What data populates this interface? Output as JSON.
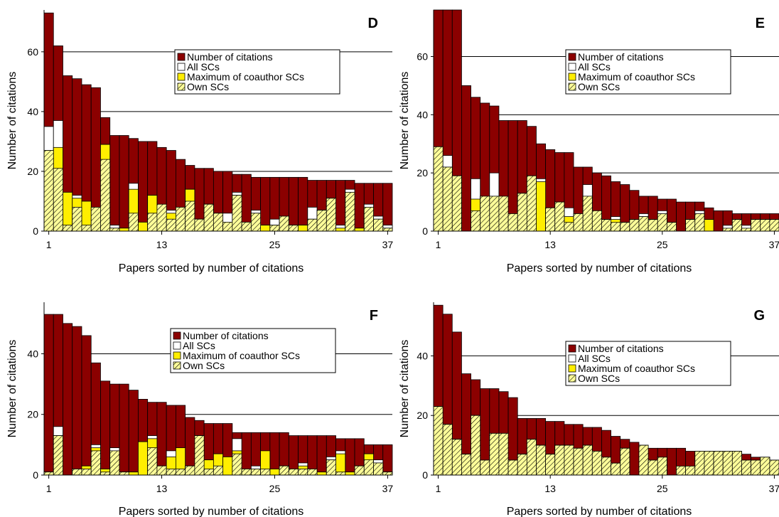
{
  "chart_data": [
    {
      "panel": "D",
      "type": "bar",
      "stacked": "overlay",
      "xlabel": "Papers sorted by number of citations",
      "ylabel": "Number of citations",
      "xticks": [
        1,
        13,
        25,
        37
      ],
      "yticks": [
        0,
        20,
        40,
        60
      ],
      "ylim": [
        0,
        74
      ],
      "grid": "horizontal",
      "legend_position": "upper-right",
      "legend": [
        "Number of citations",
        "All SCs",
        "Maximum of coauthor SCs",
        "Own SCs"
      ],
      "colors": {
        "citations": "#8b0000",
        "all_scs": "#ffffff",
        "max_coauthor": "#ffee00",
        "own": "#ffff99"
      },
      "series": [
        {
          "name": "Number of citations",
          "values": [
            73,
            62,
            52,
            51,
            49,
            48,
            38,
            32,
            32,
            31,
            30,
            30,
            28,
            27,
            24,
            22,
            21,
            21,
            20,
            20,
            19,
            19,
            18,
            18,
            18,
            18,
            18,
            18,
            17,
            17,
            17,
            17,
            17,
            16,
            16,
            16,
            16
          ]
        },
        {
          "name": "All SCs",
          "values": [
            35,
            37,
            13,
            12,
            10,
            2,
            29,
            2,
            1,
            16,
            3,
            12,
            8,
            7,
            8,
            14,
            4,
            9,
            6,
            6,
            13,
            3,
            7,
            2,
            4,
            5,
            2,
            2,
            8,
            7,
            11,
            2,
            14,
            1,
            9,
            5,
            2
          ]
        },
        {
          "name": "Maximum of coauthor SCs",
          "values": [
            27,
            28,
            13,
            11,
            10,
            2,
            29,
            1,
            1,
            14,
            3,
            12,
            8,
            6,
            8,
            14,
            4,
            9,
            6,
            3,
            12,
            3,
            6,
            2,
            2,
            5,
            2,
            2,
            4,
            7,
            11,
            1,
            13,
            1,
            8,
            4,
            1
          ]
        },
        {
          "name": "Own SCs",
          "values": [
            27,
            21,
            2,
            8,
            2,
            8,
            24,
            1,
            0,
            6,
            0,
            6,
            9,
            4,
            8,
            10,
            4,
            9,
            6,
            3,
            12,
            3,
            6,
            0,
            2,
            5,
            2,
            0,
            4,
            7,
            11,
            0,
            13,
            0,
            8,
            4,
            1
          ]
        }
      ]
    },
    {
      "panel": "E",
      "type": "bar",
      "stacked": "overlay",
      "xlabel": "Papers sorted by number of citations",
      "ylabel": "Number of citations",
      "xticks": [
        1,
        13,
        25,
        37
      ],
      "yticks": [
        0,
        20,
        40,
        60
      ],
      "ylim": [
        0,
        76
      ],
      "grid": "horizontal",
      "legend_position": "upper-right",
      "legend": [
        "Number of citations",
        "All SCs",
        "Maximum of coauthor SCs",
        "Own SCs"
      ],
      "colors": {
        "citations": "#8b0000",
        "all_scs": "#ffffff",
        "max_coauthor": "#ffee00",
        "own": "#ffff99"
      },
      "series": [
        {
          "name": "Number of citations",
          "values": [
            80,
            76,
            76,
            50,
            46,
            44,
            43,
            38,
            38,
            38,
            36,
            30,
            28,
            27,
            27,
            22,
            22,
            20,
            19,
            17,
            16,
            14,
            12,
            12,
            11,
            11,
            10,
            10,
            10,
            8,
            7,
            7,
            6,
            6,
            6,
            6,
            6
          ]
        },
        {
          "name": "All SCs",
          "values": [
            29,
            26,
            19,
            0,
            18,
            12,
            20,
            12,
            6,
            13,
            19,
            18,
            8,
            10,
            8,
            6,
            16,
            7,
            4,
            5,
            3,
            4,
            6,
            4,
            7,
            3,
            0,
            4,
            7,
            4,
            0,
            2,
            4,
            2,
            4,
            4,
            4
          ]
        },
        {
          "name": "Maximum of coauthor SCs",
          "values": [
            29,
            22,
            19,
            0,
            11,
            12,
            12,
            12,
            6,
            13,
            19,
            17,
            8,
            8,
            5,
            6,
            12,
            7,
            4,
            4,
            3,
            4,
            5,
            4,
            6,
            3,
            0,
            4,
            6,
            4,
            0,
            1,
            4,
            1,
            4,
            4,
            4
          ]
        },
        {
          "name": "Own SCs",
          "values": [
            29,
            22,
            19,
            0,
            7,
            12,
            12,
            12,
            6,
            13,
            19,
            0,
            8,
            10,
            3,
            6,
            12,
            7,
            4,
            3,
            3,
            4,
            5,
            4,
            6,
            3,
            0,
            4,
            6,
            0,
            0,
            1,
            4,
            1,
            4,
            4,
            4
          ]
        }
      ]
    },
    {
      "panel": "F",
      "type": "bar",
      "stacked": "overlay",
      "xlabel": "Papers sorted by number of citations",
      "ylabel": "Number of citations",
      "xticks": [
        1,
        13,
        25,
        37
      ],
      "yticks": [
        0,
        20,
        40
      ],
      "ylim": [
        0,
        57
      ],
      "grid": "horizontal",
      "legend_position": "upper-right",
      "legend": [
        "Number of citations",
        "All SCs",
        "Maximum of coauthor SCs",
        "Own SCs"
      ],
      "colors": {
        "citations": "#8b0000",
        "all_scs": "#ffffff",
        "max_coauthor": "#ffee00",
        "own": "#ffff99"
      },
      "series": [
        {
          "name": "Number of citations",
          "values": [
            53,
            53,
            50,
            49,
            46,
            37,
            31,
            30,
            30,
            28,
            25,
            24,
            24,
            23,
            23,
            19,
            18,
            17,
            17,
            17,
            14,
            14,
            14,
            14,
            14,
            14,
            13,
            13,
            13,
            13,
            13,
            12,
            12,
            12,
            10,
            10,
            10
          ]
        },
        {
          "name": "All SCs",
          "values": [
            1,
            16,
            0,
            2,
            3,
            10,
            2,
            9,
            1,
            1,
            11,
            13,
            3,
            8,
            8,
            3,
            13,
            5,
            7,
            6,
            12,
            2,
            3,
            8,
            2,
            3,
            2,
            4,
            2,
            1,
            6,
            8,
            1,
            3,
            7,
            5,
            1
          ]
        },
        {
          "name": "Maximum of coauthor SCs",
          "values": [
            1,
            13,
            0,
            2,
            3,
            9,
            2,
            8,
            1,
            1,
            11,
            12,
            3,
            6,
            9,
            3,
            13,
            5,
            7,
            6,
            8,
            2,
            2,
            8,
            2,
            3,
            2,
            3,
            2,
            1,
            5,
            7,
            1,
            3,
            7,
            4,
            1
          ]
        },
        {
          "name": "Own SCs",
          "values": [
            1,
            13,
            0,
            2,
            2,
            8,
            1,
            8,
            1,
            0,
            0,
            9,
            3,
            2,
            2,
            3,
            13,
            2,
            3,
            0,
            7,
            2,
            2,
            2,
            0,
            3,
            2,
            2,
            2,
            0,
            5,
            1,
            0,
            3,
            5,
            4,
            1
          ]
        }
      ]
    },
    {
      "panel": "G",
      "type": "bar",
      "stacked": "overlay",
      "xlabel": "Papers sorted by number of citations",
      "ylabel": "Number of citations",
      "xticks": [
        1,
        13,
        25,
        37
      ],
      "yticks": [
        0,
        20,
        40
      ],
      "ylim": [
        0,
        58
      ],
      "grid": "horizontal",
      "legend_position": "upper-right",
      "legend": [
        "Number of citations",
        "All SCs",
        "Maximum of coauthor SCs",
        "Own SCs"
      ],
      "colors": {
        "citations": "#8b0000",
        "all_scs": "#ffffff",
        "max_coauthor": "#ffee00",
        "own": "#ffff99"
      },
      "series": [
        {
          "name": "Number of citations",
          "values": [
            57,
            54,
            48,
            34,
            32,
            29,
            29,
            28,
            26,
            19,
            19,
            19,
            18,
            18,
            17,
            17,
            16,
            16,
            15,
            13,
            12,
            11,
            9,
            9,
            9,
            9,
            9,
            8,
            8,
            8,
            8,
            8,
            8,
            7,
            6,
            6,
            5
          ]
        },
        {
          "name": "All SCs",
          "values": [
            23,
            17,
            12,
            7,
            20,
            5,
            14,
            14,
            5,
            7,
            12,
            10,
            7,
            10,
            10,
            9,
            10,
            8,
            6,
            4,
            9,
            0,
            10,
            5,
            6,
            0,
            3,
            3,
            8,
            8,
            8,
            8,
            8,
            5,
            5,
            6,
            5
          ]
        },
        {
          "name": "Maximum of coauthor SCs",
          "values": [
            23,
            17,
            12,
            7,
            20,
            5,
            14,
            14,
            5,
            7,
            12,
            10,
            7,
            10,
            10,
            9,
            10,
            8,
            6,
            4,
            9,
            0,
            10,
            5,
            6,
            0,
            3,
            3,
            8,
            8,
            8,
            8,
            8,
            5,
            5,
            6,
            5
          ]
        },
        {
          "name": "Own SCs",
          "values": [
            23,
            17,
            12,
            7,
            20,
            5,
            14,
            14,
            5,
            7,
            12,
            10,
            7,
            10,
            10,
            9,
            10,
            8,
            6,
            4,
            9,
            0,
            10,
            5,
            6,
            0,
            3,
            3,
            8,
            8,
            8,
            8,
            8,
            5,
            5,
            6,
            5
          ]
        }
      ]
    }
  ]
}
